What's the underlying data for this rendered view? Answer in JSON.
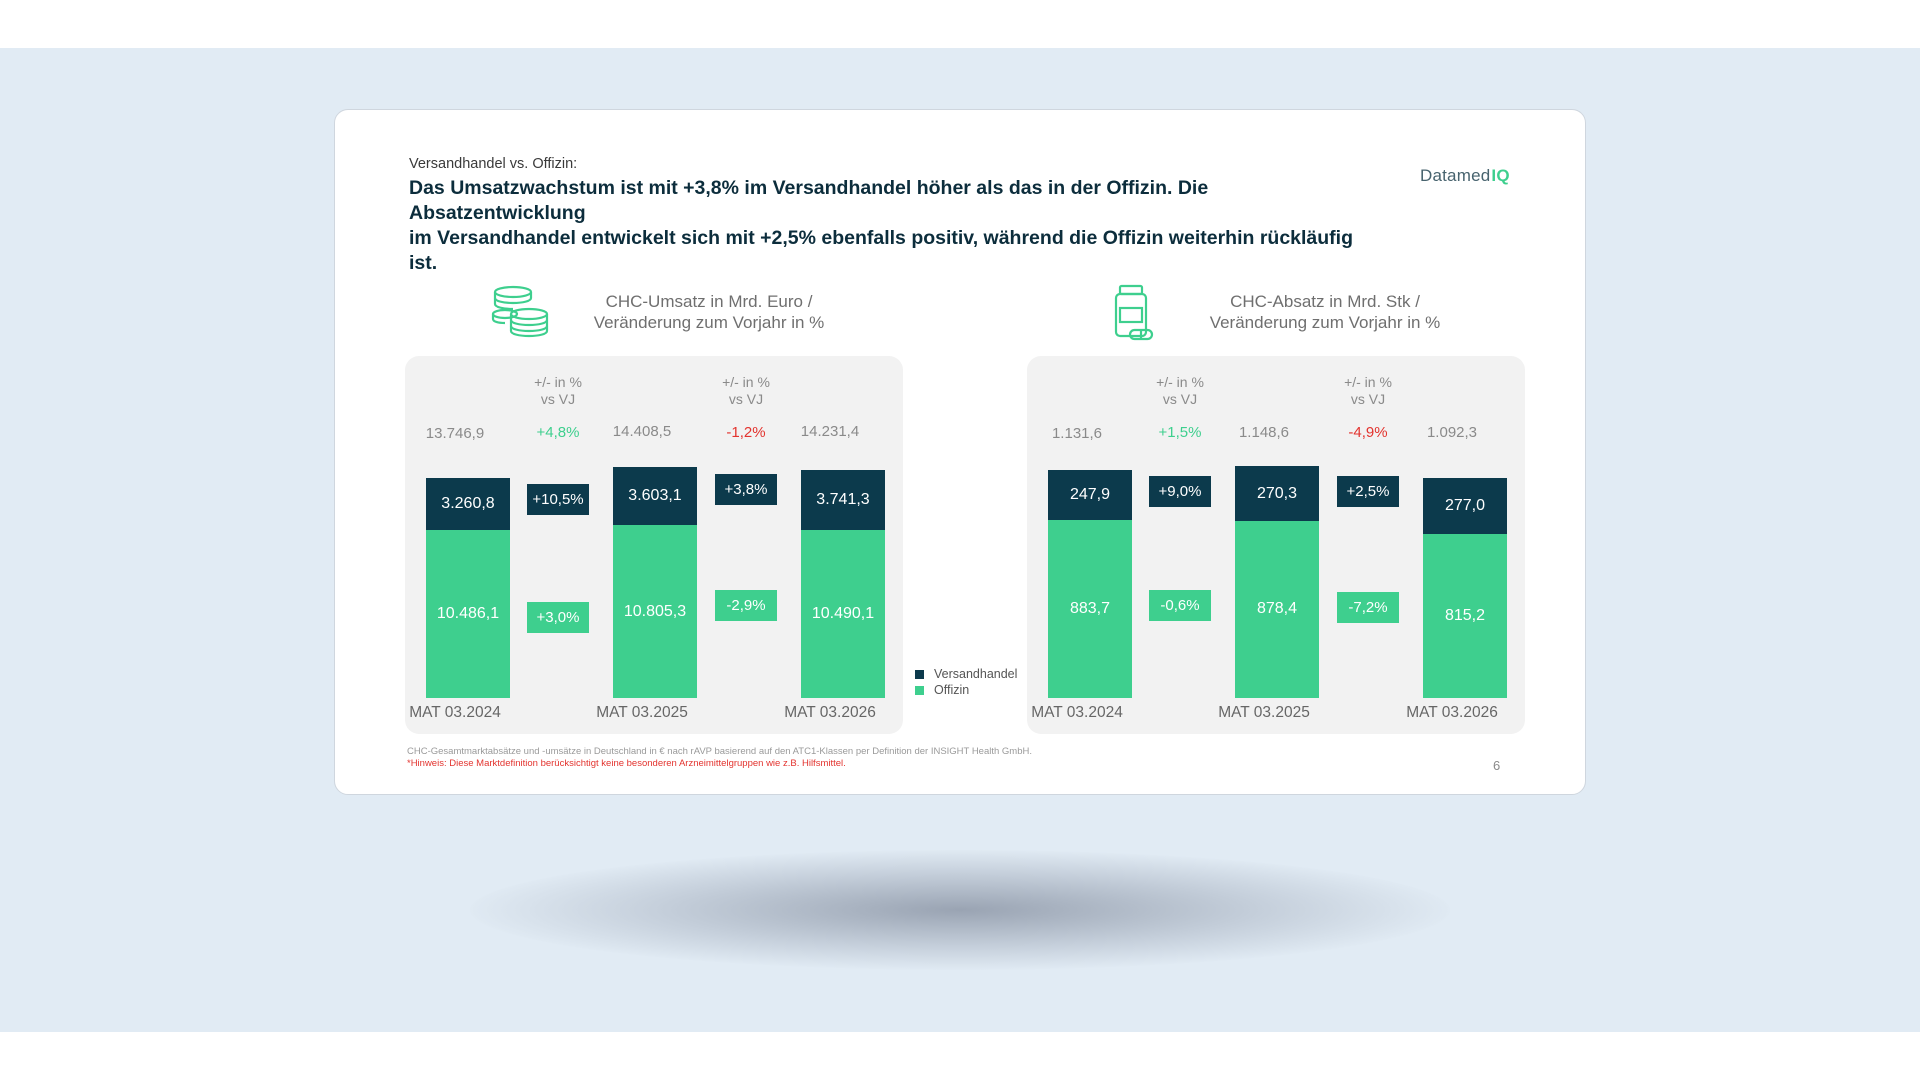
{
  "slide": {
    "kicker": "Versandhandel vs. Offizin:",
    "headline_line1": "Das Umsatzwachstum ist mit +3,8% im Versandhandel höher als das in der Offizin. Die Absatzentwicklung",
    "headline_line2": "im Versandhandel entwickelt sich mit +2,5% ebenfalls positiv, während die Offizin weiterhin rückläufig ist.",
    "logo_text": "Datamed",
    "logo_mark": "IQ",
    "footnote1": "CHC-Gesamtmarktabsätze und -umsätze in Deutschland in € nach rAVP basierend auf den ATC1-Klassen per Definition der INSIGHT Health GmbH.",
    "footnote2": "*Hinweis: Diese Marktdefinition berücksichtigt keine besonderen Arzneimittelgruppen wie z.B. Hilfsmittel.",
    "page_number": "6"
  },
  "legend": {
    "versandhandel": "Versandhandel",
    "offizin": "Offizin"
  },
  "colors": {
    "versandhandel": "#0c3a4c",
    "offizin": "#3ecf8e",
    "positive": "#3ecf8e",
    "negative": "#e3342f",
    "panel_bg": "#f2f2f2"
  },
  "chart_data": [
    {
      "type": "bar",
      "stacked": true,
      "icon": "coins-icon",
      "title_line1": "CHC-Umsatz in Mrd. Euro /",
      "title_line2": "Veränderung zum Vorjahr in %",
      "categories": [
        "MAT 03.2024",
        "MAT 03.2025",
        "MAT 03.2026"
      ],
      "series": [
        {
          "name": "Offizin",
          "values": [
            10486.1,
            10805.3,
            10490.1
          ],
          "labels": [
            "10.486,1",
            "10.805,3",
            "10.490,1"
          ]
        },
        {
          "name": "Versandhandel",
          "values": [
            3260.8,
            3603.1,
            3741.3
          ],
          "labels": [
            "3.260,8",
            "3.603,1",
            "3.741,3"
          ]
        }
      ],
      "totals": [
        "13.746,9",
        "14.408,5",
        "14.231,4"
      ],
      "delta_header_line1": "+/- in %",
      "delta_header_line2": "vs VJ",
      "deltas": [
        {
          "total": "+4,8%",
          "total_sign": "pos",
          "versandhandel": "+10,5%",
          "offizin": "+3,0%"
        },
        {
          "total": "-1,2%",
          "total_sign": "neg",
          "versandhandel": "+3,8%",
          "offizin": "-2,9%"
        }
      ],
      "ymax": 15000
    },
    {
      "type": "bar",
      "stacked": true,
      "icon": "medicine-bottle-icon",
      "title_line1": "CHC-Absatz in Mrd. Stk /",
      "title_line2": "Veränderung zum Vorjahr in %",
      "categories": [
        "MAT 03.2024",
        "MAT 03.2025",
        "MAT 03.2026"
      ],
      "series": [
        {
          "name": "Offizin",
          "values": [
            883.7,
            878.4,
            815.2
          ],
          "labels": [
            "883,7",
            "878,4",
            "815,2"
          ]
        },
        {
          "name": "Versandhandel",
          "values": [
            247.9,
            270.3,
            277.0
          ],
          "labels": [
            "247,9",
            "270,3",
            "277,0"
          ]
        }
      ],
      "totals": [
        "1.131,6",
        "1.148,6",
        "1.092,3"
      ],
      "delta_header_line1": "+/- in %",
      "delta_header_line2": "vs VJ",
      "deltas": [
        {
          "total": "+1,5%",
          "total_sign": "pos",
          "versandhandel": "+9,0%",
          "offizin": "-0,6%"
        },
        {
          "total": "-4,9%",
          "total_sign": "neg",
          "versandhandel": "+2,5%",
          "offizin": "-7,2%"
        }
      ],
      "ymax": 1200
    }
  ]
}
